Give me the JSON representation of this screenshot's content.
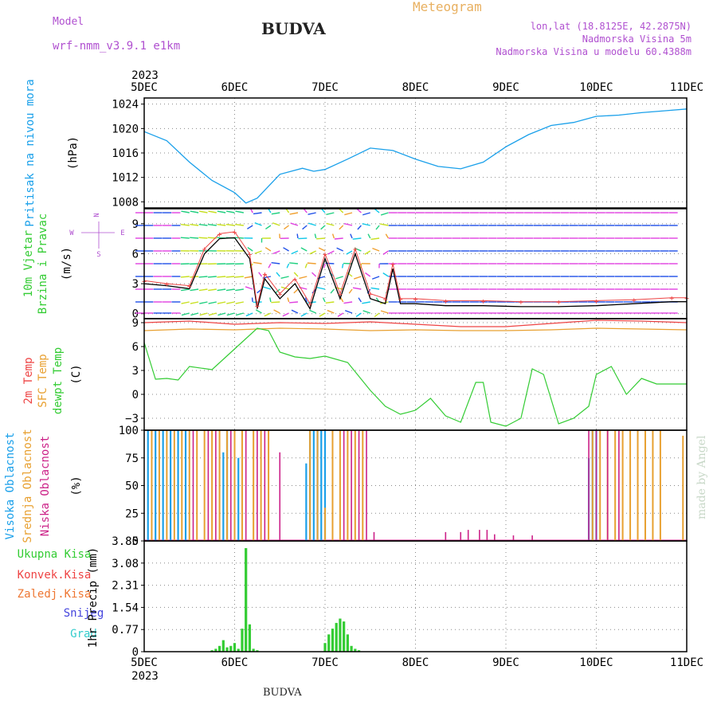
{
  "header": {
    "model_label": "Model",
    "model_name": "wrf-nmm_v3.9.1 e1km",
    "station": "BUDVA",
    "meteogram_label": "Meteogram",
    "lonlat": "lon,lat (18.8125E, 42.2875N)",
    "altitude": "Nadmorska Visina 5m",
    "model_altitude": "Nadmorska Visina u modelu 60.4388m",
    "credit": "made by Angel",
    "footer_station": "BUDVA"
  },
  "colors": {
    "pressure": "#1aa0ea",
    "wind_speed": "#000000",
    "wind_gust": "#ee4444",
    "temp_2m": "#ee4444",
    "temp_sfc": "#e8a030",
    "dewpoint": "#33cc33",
    "cloud_high": "#1aa0ea",
    "cloud_mid": "#e8a030",
    "cloud_low": "#cc2288",
    "precip_total": "#33cc33",
    "precip_conv": "#ee4444",
    "precip_frozen": "#ee7733",
    "snow": "#4444dd",
    "graupel": "#33cccc",
    "title_purple": "#b050d0",
    "meteogram_orange": "#e8b060"
  },
  "chart_data": {
    "type": "line",
    "x_axis": {
      "year": "2023",
      "ticks": [
        "5DEC",
        "6DEC",
        "7DEC",
        "8DEC",
        "9DEC",
        "10DEC",
        "11DEC"
      ],
      "range_hours": [
        0,
        144
      ],
      "grid": true
    },
    "panels": [
      {
        "id": "pressure",
        "type": "line",
        "labels": [
          "Pritisak na nivou mora"
        ],
        "unit": "(hPa)",
        "ylim": [
          1007,
          1025
        ],
        "yticks": [
          1008,
          1012,
          1016,
          1020,
          1024
        ],
        "series": [
          {
            "x": [
              0,
              6,
              12,
              18,
              24,
              27,
              30,
              36,
              42,
              45,
              48,
              54,
              60,
              66,
              72,
              78,
              84,
              90,
              96,
              102,
              108,
              114,
              120,
              126,
              132,
              138,
              144
            ],
            "values": [
              1019.5,
              1018.0,
              1014.5,
              1011.5,
              1009.5,
              1007.8,
              1008.6,
              1012.5,
              1013.5,
              1013.0,
              1013.3,
              1015.0,
              1016.8,
              1016.4,
              1015.0,
              1013.8,
              1013.4,
              1014.5,
              1017.0,
              1019.0,
              1020.5,
              1021.0,
              1022.0,
              1022.2,
              1022.6,
              1022.9,
              1023.2
            ]
          }
        ]
      },
      {
        "id": "wind",
        "type": "line",
        "labels": [
          "10m Vjetar",
          "Brzina i Pravac"
        ],
        "unit": "(m/s)",
        "compass": [
          "N",
          "W",
          "E",
          "S"
        ],
        "ylim": [
          -0.5,
          10.5
        ],
        "yticks": [
          0,
          3,
          6,
          9
        ],
        "series": [
          {
            "name": "speed",
            "x": [
              0,
              6,
              12,
              16,
              20,
              24,
              28,
              30,
              32,
              36,
              40,
              44,
              48,
              52,
              56,
              60,
              64,
              66,
              68,
              72,
              80,
              90,
              100,
              110,
              120,
              130,
              140,
              144
            ],
            "values": [
              3.0,
              2.8,
              2.5,
              6.0,
              7.5,
              7.6,
              5.5,
              0.5,
              3.5,
              1.5,
              3.0,
              0.5,
              5.5,
              1.5,
              6.0,
              1.5,
              1.0,
              4.5,
              1.0,
              1.0,
              0.8,
              0.8,
              0.7,
              0.7,
              0.8,
              1.0,
              1.2,
              1.2
            ]
          },
          {
            "name": "gust",
            "x": [
              0,
              6,
              12,
              16,
              20,
              24,
              28,
              30,
              32,
              36,
              40,
              44,
              48,
              52,
              56,
              60,
              64,
              66,
              68,
              72,
              80,
              90,
              100,
              110,
              120,
              130,
              140,
              144
            ],
            "values": [
              3.3,
              3.0,
              2.8,
              6.5,
              8.0,
              8.2,
              6.0,
              0.8,
              4.0,
              2.0,
              3.5,
              1.0,
              6.0,
              2.0,
              6.5,
              2.0,
              1.5,
              5.0,
              1.5,
              1.5,
              1.3,
              1.3,
              1.2,
              1.2,
              1.3,
              1.4,
              1.6,
              1.6
            ]
          }
        ],
        "barb_colors": [
          "#e040e0",
          "#2050e8",
          "#10c8e8",
          "#20d080",
          "#c8e020",
          "#f0a030"
        ]
      },
      {
        "id": "temperature",
        "type": "line",
        "labels": [
          "2m Temp",
          "SFC Temp",
          "dewpt Temp"
        ],
        "unit": "(C)",
        "ylim": [
          -4.5,
          9.5
        ],
        "yticks": [
          -3,
          0,
          3,
          6,
          9
        ],
        "series": [
          {
            "name": "2m Temp",
            "x": [
              0,
              12,
              24,
              36,
              48,
              60,
              72,
              84,
              96,
              108,
              120,
              132,
              144
            ],
            "values": [
              9.0,
              9.2,
              8.8,
              9.0,
              8.9,
              9.1,
              8.8,
              8.5,
              8.5,
              8.9,
              9.3,
              9.2,
              9.0
            ]
          },
          {
            "name": "SFC Temp",
            "x": [
              0,
              12,
              24,
              36,
              48,
              60,
              72,
              84,
              96,
              108,
              120,
              132,
              144
            ],
            "values": [
              8.0,
              8.2,
              8.1,
              8.3,
              8.2,
              8.0,
              8.1,
              8.0,
              8.0,
              8.1,
              8.3,
              8.2,
              8.1
            ]
          },
          {
            "name": "dewpt Temp",
            "x": [
              0,
              3,
              6,
              9,
              12,
              18,
              24,
              30,
              33,
              36,
              40,
              44,
              48,
              54,
              60,
              64,
              68,
              72,
              76,
              80,
              84,
              88,
              90,
              92,
              96,
              100,
              103,
              106,
              110,
              114,
              118,
              120,
              124,
              128,
              132,
              136,
              140,
              142,
              144
            ],
            "values": [
              6.5,
              1.9,
              2.0,
              1.8,
              3.5,
              3.1,
              5.7,
              8.3,
              8.0,
              5.3,
              4.7,
              4.5,
              4.8,
              4.0,
              0.5,
              -1.5,
              -2.5,
              -2.0,
              -0.5,
              -2.7,
              -3.5,
              1.5,
              1.5,
              -3.5,
              -4.0,
              -3.0,
              3.2,
              2.5,
              -3.7,
              -3.0,
              -1.5,
              2.5,
              3.5,
              0.0,
              2.0,
              1.3,
              1.3,
              1.3,
              1.3
            ]
          }
        ]
      },
      {
        "id": "clouds",
        "type": "bar",
        "labels": [
          "Visoka Oblacnost",
          "Srednja Oblacnost",
          "Niska Oblacnost"
        ],
        "unit": "(%)",
        "ylim": [
          0,
          100
        ],
        "yticks": [
          0,
          25,
          50,
          75,
          100
        ],
        "series": [
          {
            "name": "Visoka Oblacnost",
            "x": [
              1,
              3,
              5,
              7,
              9,
              11,
              21,
              22,
              25,
              43,
              44,
              45,
              46,
              47,
              48,
              118,
              119,
              120
            ],
            "values": [
              100,
              100,
              100,
              100,
              100,
              100,
              80,
              100,
              75,
              70,
              100,
              100,
              100,
              100,
              100,
              75,
              100,
              100
            ]
          },
          {
            "name": "Srednja Oblacnost",
            "x": [
              2,
              4,
              6,
              8,
              10,
              12,
              14,
              16,
              18,
              20,
              22,
              24,
              26,
              29,
              31,
              33,
              44,
              46,
              48,
              50,
              52,
              54,
              56,
              58,
              119,
              121,
              123,
              125,
              127,
              129,
              131,
              133,
              135,
              137,
              143
            ],
            "values": [
              100,
              100,
              100,
              100,
              100,
              100,
              100,
              100,
              100,
              100,
              100,
              100,
              100,
              100,
              100,
              100,
              100,
              100,
              30,
              100,
              100,
              100,
              100,
              100,
              100,
              100,
              100,
              100,
              100,
              100,
              100,
              100,
              100,
              100,
              95
            ]
          },
          {
            "name": "Niska Oblacnost",
            "x": [
              13,
              17,
              19,
              23,
              27,
              30,
              32,
              36,
              53,
              55,
              57,
              59,
              61,
              80,
              84,
              86,
              89,
              91,
              93,
              98,
              103,
              118,
              120,
              123,
              126
            ],
            "values": [
              100,
              100,
              100,
              100,
              100,
              100,
              100,
              80,
              100,
              100,
              100,
              100,
              8,
              8,
              8,
              10,
              10,
              10,
              6,
              5,
              5,
              100,
              100,
              100,
              100
            ]
          }
        ]
      },
      {
        "id": "precip",
        "type": "bar",
        "labels": [
          "Ukupna Kisa",
          "Konvek.Kisa",
          "Zaledj.Kisa",
          "Snijeg",
          "Grad"
        ],
        "unit": "1hr Precip (mm)",
        "ylim": [
          0,
          3.85
        ],
        "yticks": [
          "0",
          "0.77",
          "1.54",
          "2.31",
          "3.08",
          "3.85"
        ],
        "series": [
          {
            "name": "Ukupna Kisa",
            "x": [
              18,
              19,
              20,
              21,
              22,
              23,
              24,
              25,
              26,
              27,
              28,
              29,
              30,
              48,
              49,
              50,
              51,
              52,
              53,
              54,
              55,
              56,
              57
            ],
            "values": [
              0.05,
              0.1,
              0.2,
              0.4,
              0.15,
              0.2,
              0.3,
              0.1,
              0.8,
              3.6,
              0.95,
              0.1,
              0.05,
              0.3,
              0.6,
              0.8,
              1.0,
              1.15,
              1.05,
              0.6,
              0.2,
              0.1,
              0.05
            ]
          }
        ]
      }
    ]
  }
}
